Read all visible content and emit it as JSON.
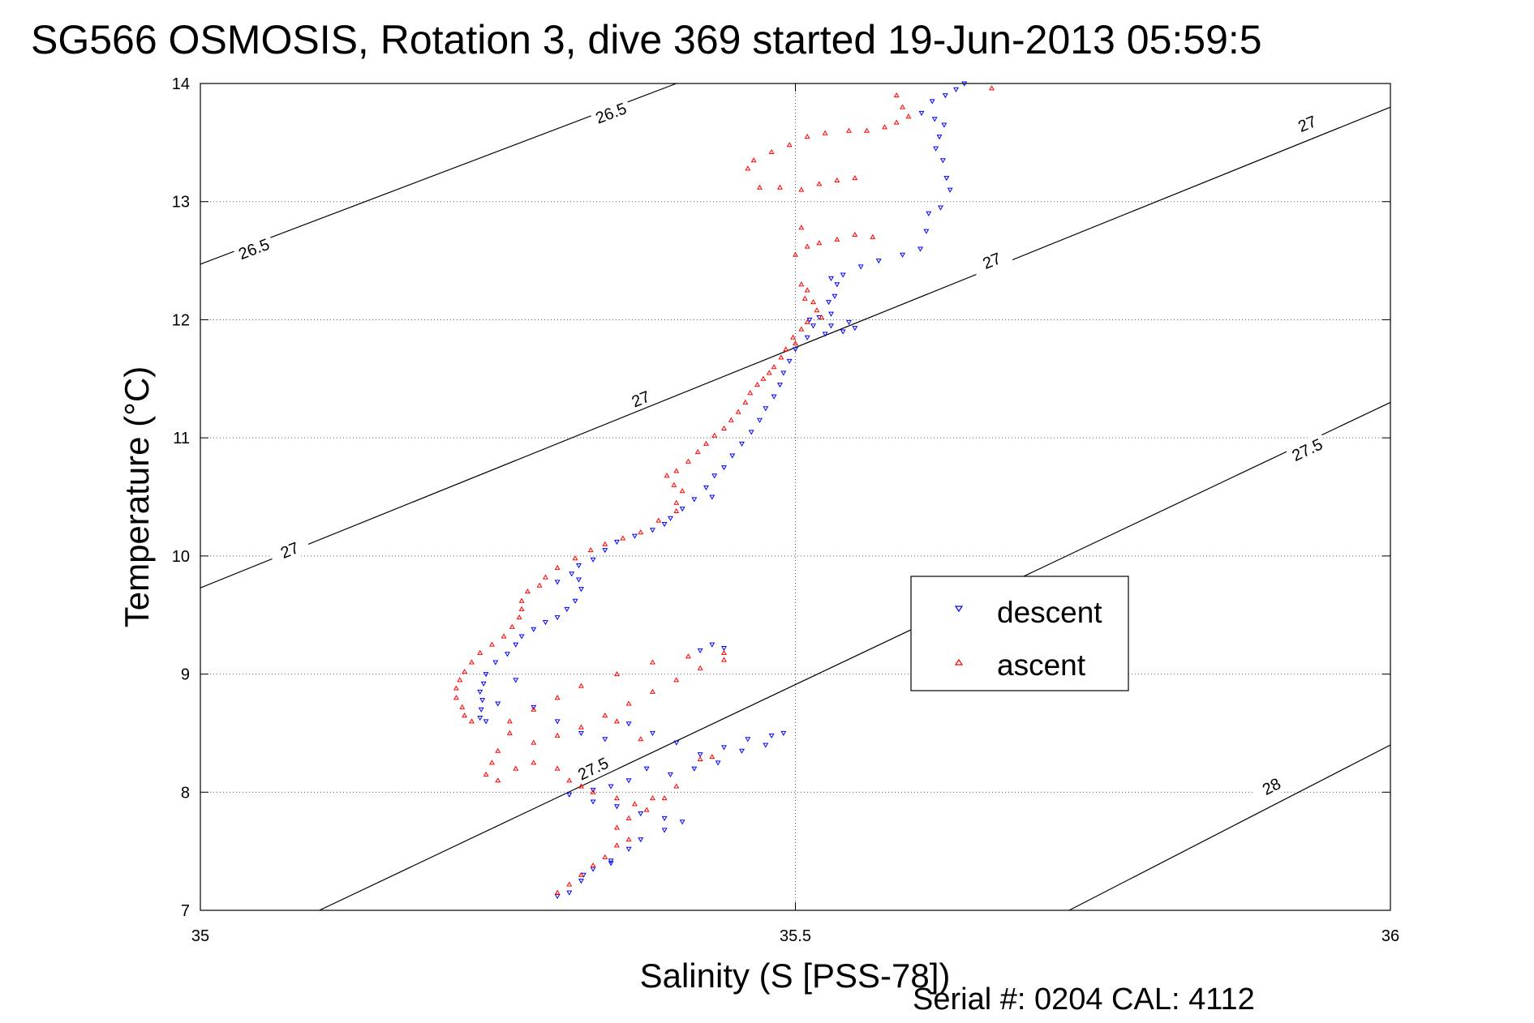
{
  "chart_data": {
    "type": "scatter",
    "title": "SG566 OSMOSIS, Rotation 3, dive 369 started 19-Jun-2013 05:59:5",
    "xlabel": "Salinity (S [PSS-78])",
    "ylabel": "Temperature (°C)",
    "footer": "Serial #: 0204  CAL: 4112",
    "xlim": [
      35,
      36
    ],
    "ylim": [
      7,
      14
    ],
    "xticks": [
      "35",
      "35.5",
      "36"
    ],
    "yticks": [
      "7",
      "8",
      "9",
      "10",
      "11",
      "12",
      "13",
      "14"
    ],
    "grid": true,
    "legend_position": "center-right",
    "contours": [
      {
        "label": "26.5",
        "points": [
          [
            35.0,
            12.47
          ],
          [
            35.4,
            14.0
          ]
        ],
        "labels_at": [
          [
            35.045,
            12.6
          ],
          [
            35.345,
            13.75
          ]
        ]
      },
      {
        "label": "27",
        "points": [
          [
            35.0,
            9.73
          ],
          [
            36.0,
            13.8
          ]
        ],
        "labels_at": [
          [
            35.075,
            10.05
          ],
          [
            35.37,
            11.33
          ],
          [
            35.665,
            12.5
          ],
          [
            35.93,
            13.66
          ]
        ]
      },
      {
        "label": "27.5",
        "points": [
          [
            35.1,
            7.0
          ],
          [
            36.0,
            11.3
          ]
        ],
        "labels_at": [
          [
            35.33,
            8.2
          ],
          [
            35.93,
            10.9
          ]
        ]
      },
      {
        "label": "28",
        "points": [
          [
            35.73,
            7.0
          ],
          [
            36.0,
            8.4
          ]
        ],
        "labels_at": [
          [
            35.9,
            8.05
          ]
        ]
      }
    ],
    "series": [
      {
        "name": "descent",
        "color": "#0000ff",
        "marker": "triangle-down",
        "points": [
          [
            35.642,
            14.0
          ],
          [
            35.635,
            13.95
          ],
          [
            35.626,
            13.9
          ],
          [
            35.615,
            13.85
          ],
          [
            35.606,
            13.75
          ],
          [
            35.617,
            13.7
          ],
          [
            35.625,
            13.65
          ],
          [
            35.621,
            13.55
          ],
          [
            35.618,
            13.45
          ],
          [
            35.624,
            13.35
          ],
          [
            35.627,
            13.2
          ],
          [
            35.63,
            13.1
          ],
          [
            35.622,
            12.95
          ],
          [
            35.612,
            12.9
          ],
          [
            35.61,
            12.75
          ],
          [
            35.605,
            12.6
          ],
          [
            35.59,
            12.55
          ],
          [
            35.57,
            12.5
          ],
          [
            35.555,
            12.45
          ],
          [
            35.54,
            12.38
          ],
          [
            35.53,
            12.35
          ],
          [
            35.535,
            12.3
          ],
          [
            35.533,
            12.2
          ],
          [
            35.528,
            12.15
          ],
          [
            35.53,
            12.05
          ],
          [
            35.52,
            12.02
          ],
          [
            35.512,
            12.0
          ],
          [
            35.515,
            11.95
          ],
          [
            35.53,
            11.95
          ],
          [
            35.545,
            11.98
          ],
          [
            35.55,
            11.93
          ],
          [
            35.54,
            11.9
          ],
          [
            35.525,
            11.88
          ],
          [
            35.51,
            11.85
          ],
          [
            35.5,
            11.75
          ],
          [
            35.495,
            11.65
          ],
          [
            35.49,
            11.55
          ],
          [
            35.487,
            11.45
          ],
          [
            35.482,
            11.35
          ],
          [
            35.475,
            11.25
          ],
          [
            35.47,
            11.15
          ],
          [
            35.463,
            11.05
          ],
          [
            35.455,
            10.95
          ],
          [
            35.447,
            10.85
          ],
          [
            35.44,
            10.75
          ],
          [
            35.432,
            10.68
          ],
          [
            35.425,
            10.58
          ],
          [
            35.43,
            10.5
          ],
          [
            35.415,
            10.48
          ],
          [
            35.405,
            10.4
          ],
          [
            35.395,
            10.32
          ],
          [
            35.39,
            10.27
          ],
          [
            35.38,
            10.22
          ],
          [
            35.365,
            10.17
          ],
          [
            35.35,
            10.12
          ],
          [
            35.34,
            10.05
          ],
          [
            35.33,
            9.97
          ],
          [
            35.318,
            9.92
          ],
          [
            35.312,
            9.85
          ],
          [
            35.3,
            9.78
          ],
          [
            35.318,
            9.8
          ],
          [
            35.32,
            9.72
          ],
          [
            35.315,
            9.62
          ],
          [
            35.308,
            9.55
          ],
          [
            35.3,
            9.48
          ],
          [
            35.29,
            9.44
          ],
          [
            35.28,
            9.38
          ],
          [
            35.27,
            9.32
          ],
          [
            35.265,
            9.25
          ],
          [
            35.258,
            9.17
          ],
          [
            35.248,
            9.1
          ],
          [
            35.24,
            9.0
          ],
          [
            35.238,
            8.92
          ],
          [
            35.235,
            8.85
          ],
          [
            35.237,
            8.78
          ],
          [
            35.236,
            8.7
          ],
          [
            35.235,
            8.63
          ],
          [
            35.24,
            8.6
          ],
          [
            35.25,
            8.75
          ],
          [
            35.265,
            8.95
          ],
          [
            35.28,
            8.72
          ],
          [
            35.3,
            8.6
          ],
          [
            35.32,
            8.5
          ],
          [
            35.34,
            8.45
          ],
          [
            35.36,
            8.58
          ],
          [
            35.38,
            8.5
          ],
          [
            35.4,
            8.42
          ],
          [
            35.42,
            8.32
          ],
          [
            35.44,
            8.38
          ],
          [
            35.46,
            8.45
          ],
          [
            35.48,
            8.48
          ],
          [
            35.49,
            8.5
          ],
          [
            35.475,
            8.4
          ],
          [
            35.455,
            8.35
          ],
          [
            35.435,
            8.25
          ],
          [
            35.415,
            8.2
          ],
          [
            35.395,
            8.15
          ],
          [
            35.375,
            8.2
          ],
          [
            35.36,
            8.1
          ],
          [
            35.345,
            8.05
          ],
          [
            35.33,
            8.02
          ],
          [
            35.31,
            7.98
          ],
          [
            35.33,
            7.92
          ],
          [
            35.35,
            7.88
          ],
          [
            35.37,
            7.82
          ],
          [
            35.39,
            7.78
          ],
          [
            35.405,
            7.75
          ],
          [
            35.39,
            7.68
          ],
          [
            35.37,
            7.6
          ],
          [
            35.36,
            7.52
          ],
          [
            35.345,
            7.42
          ],
          [
            35.33,
            7.35
          ],
          [
            35.32,
            7.25
          ],
          [
            35.31,
            7.15
          ],
          [
            35.3,
            7.12
          ],
          [
            35.322,
            7.3
          ],
          [
            35.345,
            7.4
          ],
          [
            35.43,
            9.25
          ],
          [
            35.44,
            9.22
          ],
          [
            35.42,
            9.2
          ]
        ]
      },
      {
        "name": "ascent",
        "color": "#ff0000",
        "marker": "triangle-up",
        "points": [
          [
            35.665,
            13.96
          ],
          [
            35.585,
            13.9
          ],
          [
            35.59,
            13.8
          ],
          [
            35.595,
            13.72
          ],
          [
            35.585,
            13.67
          ],
          [
            35.575,
            13.63
          ],
          [
            35.56,
            13.6
          ],
          [
            35.545,
            13.6
          ],
          [
            35.525,
            13.58
          ],
          [
            35.51,
            13.55
          ],
          [
            35.495,
            13.48
          ],
          [
            35.48,
            13.42
          ],
          [
            35.465,
            13.35
          ],
          [
            35.46,
            13.28
          ],
          [
            35.55,
            13.2
          ],
          [
            35.535,
            13.18
          ],
          [
            35.52,
            13.15
          ],
          [
            35.505,
            13.1
          ],
          [
            35.487,
            13.12
          ],
          [
            35.47,
            13.12
          ],
          [
            35.565,
            12.7
          ],
          [
            35.55,
            12.72
          ],
          [
            35.535,
            12.68
          ],
          [
            35.52,
            12.65
          ],
          [
            35.51,
            12.62
          ],
          [
            35.5,
            12.55
          ],
          [
            35.505,
            12.78
          ],
          [
            35.505,
            12.3
          ],
          [
            35.51,
            12.25
          ],
          [
            35.508,
            12.18
          ],
          [
            35.515,
            12.15
          ],
          [
            35.518,
            12.08
          ],
          [
            35.522,
            12.02
          ],
          [
            35.51,
            11.98
          ],
          [
            35.505,
            11.92
          ],
          [
            35.498,
            11.85
          ],
          [
            35.5,
            11.8
          ],
          [
            35.492,
            11.75
          ],
          [
            35.488,
            11.68
          ],
          [
            35.482,
            11.6
          ],
          [
            35.478,
            11.55
          ],
          [
            35.473,
            11.5
          ],
          [
            35.468,
            11.45
          ],
          [
            35.462,
            11.38
          ],
          [
            35.458,
            11.3
          ],
          [
            35.452,
            11.22
          ],
          [
            35.446,
            11.15
          ],
          [
            35.44,
            11.08
          ],
          [
            35.432,
            11.02
          ],
          [
            35.425,
            10.95
          ],
          [
            35.418,
            10.88
          ],
          [
            35.41,
            10.8
          ],
          [
            35.4,
            10.72
          ],
          [
            35.392,
            10.68
          ],
          [
            35.398,
            10.6
          ],
          [
            35.405,
            10.55
          ],
          [
            35.4,
            10.45
          ],
          [
            35.4,
            10.38
          ],
          [
            35.385,
            10.3
          ],
          [
            35.37,
            10.2
          ],
          [
            35.355,
            10.15
          ],
          [
            35.34,
            10.1
          ],
          [
            35.328,
            10.05
          ],
          [
            35.315,
            9.98
          ],
          [
            35.3,
            9.9
          ],
          [
            35.29,
            9.82
          ],
          [
            35.285,
            9.75
          ],
          [
            35.275,
            9.7
          ],
          [
            35.27,
            9.62
          ],
          [
            35.27,
            9.55
          ],
          [
            35.268,
            9.48
          ],
          [
            35.262,
            9.4
          ],
          [
            35.255,
            9.32
          ],
          [
            35.245,
            9.25
          ],
          [
            35.235,
            9.18
          ],
          [
            35.228,
            9.1
          ],
          [
            35.222,
            9.02
          ],
          [
            35.218,
            8.95
          ],
          [
            35.215,
            8.88
          ],
          [
            35.215,
            8.8
          ],
          [
            35.22,
            8.72
          ],
          [
            35.222,
            8.65
          ],
          [
            35.228,
            8.6
          ],
          [
            35.26,
            8.5
          ],
          [
            35.28,
            8.42
          ],
          [
            35.3,
            8.48
          ],
          [
            35.32,
            8.55
          ],
          [
            35.34,
            8.65
          ],
          [
            35.36,
            8.75
          ],
          [
            35.38,
            8.85
          ],
          [
            35.4,
            8.95
          ],
          [
            35.42,
            9.05
          ],
          [
            35.44,
            9.12
          ],
          [
            35.44,
            9.18
          ],
          [
            35.41,
            9.15
          ],
          [
            35.38,
            9.1
          ],
          [
            35.35,
            9.0
          ],
          [
            35.32,
            8.9
          ],
          [
            35.3,
            8.8
          ],
          [
            35.28,
            8.7
          ],
          [
            35.26,
            8.6
          ],
          [
            35.25,
            8.35
          ],
          [
            35.245,
            8.25
          ],
          [
            35.24,
            8.15
          ],
          [
            35.25,
            8.1
          ],
          [
            35.265,
            8.2
          ],
          [
            35.28,
            8.25
          ],
          [
            35.3,
            8.2
          ],
          [
            35.31,
            8.1
          ],
          [
            35.32,
            8.05
          ],
          [
            35.33,
            8.0
          ],
          [
            35.35,
            7.95
          ],
          [
            35.365,
            7.9
          ],
          [
            35.38,
            7.95
          ],
          [
            35.4,
            8.05
          ],
          [
            35.39,
            7.95
          ],
          [
            35.375,
            7.85
          ],
          [
            35.36,
            7.78
          ],
          [
            35.35,
            7.7
          ],
          [
            35.36,
            7.6
          ],
          [
            35.35,
            7.55
          ],
          [
            35.34,
            7.45
          ],
          [
            35.33,
            7.38
          ],
          [
            35.32,
            7.3
          ],
          [
            35.31,
            7.22
          ],
          [
            35.3,
            7.15
          ],
          [
            35.42,
            8.28
          ],
          [
            35.43,
            8.3
          ],
          [
            35.35,
            8.6
          ],
          [
            35.37,
            8.45
          ]
        ]
      }
    ]
  }
}
